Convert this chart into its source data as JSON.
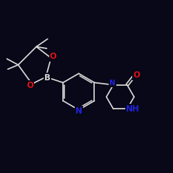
{
  "bg_color": "#080818",
  "bond_color": "#d8d8d8",
  "atom_colors": {
    "B": "#d8d8d8",
    "N": "#2222dd",
    "O": "#dd1111",
    "C": "#d8d8d8"
  },
  "figsize": [
    2.5,
    2.5
  ],
  "dpi": 100,
  "font_size": 8.5
}
